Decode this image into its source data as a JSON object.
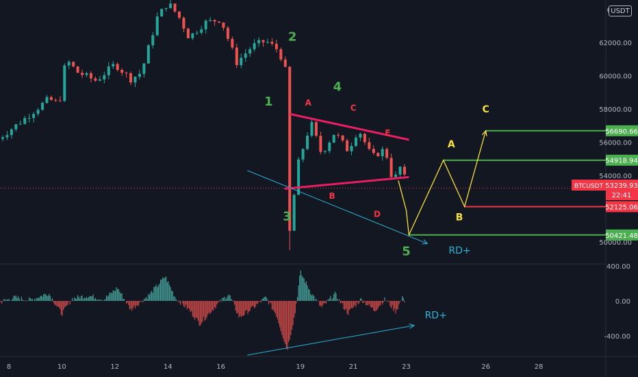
{
  "header": {
    "currency": "USDT",
    "top_tick_fragment": "6"
  },
  "chart_data": {
    "type": "candlestick",
    "symbol": "BTCUSDT",
    "last_price": "53239.93",
    "countdown": "22:41",
    "x_ticks": [
      "8",
      "10",
      "12",
      "14",
      "16",
      "19",
      "21",
      "23",
      "26",
      "28"
    ],
    "x_tick_day": [
      8,
      10,
      12,
      14,
      16,
      19,
      21,
      23,
      26,
      28
    ],
    "price_ticks": [
      "62000.00",
      "60000.00",
      "58000.00",
      "56000.00",
      "54000.00",
      "50000.00"
    ],
    "price_tick_values": [
      62000,
      60000,
      58000,
      56000,
      54000,
      50000
    ],
    "osc_ticks": [
      "400.00",
      "0.00",
      "-400.00"
    ],
    "osc_tick_values": [
      400,
      0,
      -400
    ],
    "price_levels": [
      {
        "label": "56690.66",
        "value": 56690.66,
        "color": "#4caf50"
      },
      {
        "label": "54918.94",
        "value": 54918.94,
        "color": "#4caf50"
      },
      {
        "label": "52125.06",
        "value": 52125.06,
        "color": "#f23645"
      },
      {
        "label": "50421.48",
        "value": 50421.48,
        "color": "#4caf50"
      }
    ],
    "wave_labels": [
      {
        "text": "1",
        "day": 17.8,
        "price": 58200,
        "color": "#4caf50"
      },
      {
        "text": "2",
        "day": 18.7,
        "price": 62100,
        "color": "#4caf50"
      },
      {
        "text": "3",
        "day": 18.5,
        "price": 51300,
        "color": "#4caf50"
      },
      {
        "text": "4",
        "day": 20.4,
        "price": 59100,
        "color": "#4caf50"
      },
      {
        "text": "5",
        "day": 23.0,
        "price": 49200,
        "color": "#4caf50"
      }
    ],
    "triangle_labels": [
      {
        "text": "A",
        "day": 19.3,
        "price": 58200,
        "color": "#f23645"
      },
      {
        "text": "B",
        "day": 20.2,
        "price": 52600,
        "color": "#f23645"
      },
      {
        "text": "C",
        "day": 21.0,
        "price": 57900,
        "color": "#f23645"
      },
      {
        "text": "D",
        "day": 21.9,
        "price": 51500,
        "color": "#f23645"
      },
      {
        "text": "E",
        "day": 22.3,
        "price": 56400,
        "color": "#f23645"
      }
    ],
    "projection_labels": [
      {
        "text": "A",
        "day": 24.7,
        "price": 55700,
        "color": "#f7e13a"
      },
      {
        "text": "B",
        "day": 25.0,
        "price": 51300,
        "color": "#f7e13a"
      },
      {
        "text": "C",
        "day": 26.0,
        "price": 57800,
        "color": "#f7e13a"
      }
    ],
    "triangle_upper": [
      [
        18.6,
        57700
      ],
      [
        23.1,
        56150
      ]
    ],
    "triangle_lower": [
      [
        18.4,
        53200
      ],
      [
        23.1,
        53900
      ]
    ],
    "divergence_price": {
      "label": "RD+",
      "points": [
        [
          17.0,
          54300
        ],
        [
          23.8,
          49900
        ]
      ],
      "label_at": [
        24.6,
        49300
      ],
      "color": "#2bb5d8"
    },
    "divergence_osc": {
      "label": "RD+",
      "points": [
        [
          17.0,
          -620
        ],
        [
          23.3,
          -280
        ]
      ],
      "label_at": [
        23.7,
        -200
      ],
      "color": "#2bb5d8"
    },
    "projection_path": [
      [
        22.7,
        53700
      ],
      [
        23.0,
        51900
      ],
      [
        23.1,
        50421.48
      ],
      [
        24.4,
        54918.94
      ],
      [
        25.2,
        52125.06
      ],
      [
        26.0,
        56690.66
      ]
    ],
    "projection_color": "#f7e13a",
    "current_price_value": 53239.93
  }
}
